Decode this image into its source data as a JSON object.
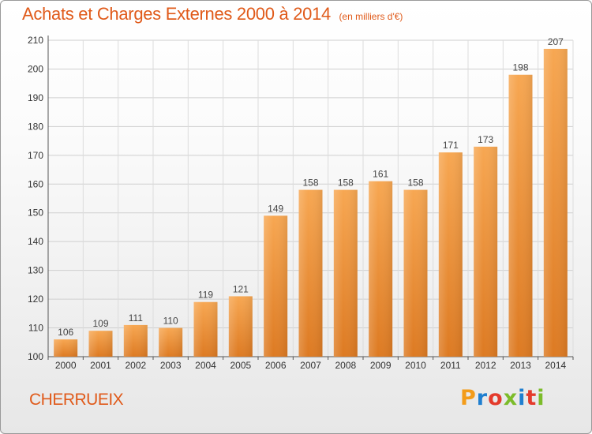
{
  "header": {
    "title": "Achats et Charges Externes 2000 à 2014",
    "subtitle": "(en milliers d'€)"
  },
  "footer": {
    "commune": "CHERRUEIX",
    "logo_text": "Proxiti"
  },
  "colors": {
    "title": "#e05a1a",
    "bar_light": "#f7a752",
    "bar_dark": "#dd7a22",
    "logo_letters": [
      "#f39c1a",
      "#1f7fd0",
      "#e43b2c",
      "#7cbc2a",
      "#1f7fd0",
      "#e43b2c",
      "#7cbc2a"
    ]
  },
  "chart_data": {
    "type": "bar",
    "title": "Achats et Charges Externes 2000 à 2014",
    "subtitle": "(en milliers d'€)",
    "categories": [
      "2000",
      "2001",
      "2002",
      "2003",
      "2004",
      "2005",
      "2006",
      "2007",
      "2008",
      "2009",
      "2010",
      "2011",
      "2012",
      "2013",
      "2014"
    ],
    "values": [
      106,
      109,
      111,
      110,
      119,
      121,
      149,
      158,
      158,
      161,
      158,
      171,
      173,
      198,
      207
    ],
    "ylim": [
      100,
      210
    ],
    "yticks": [
      100,
      110,
      120,
      130,
      140,
      150,
      160,
      170,
      180,
      190,
      200,
      210
    ],
    "grid": true,
    "xlabel": "",
    "ylabel": ""
  }
}
